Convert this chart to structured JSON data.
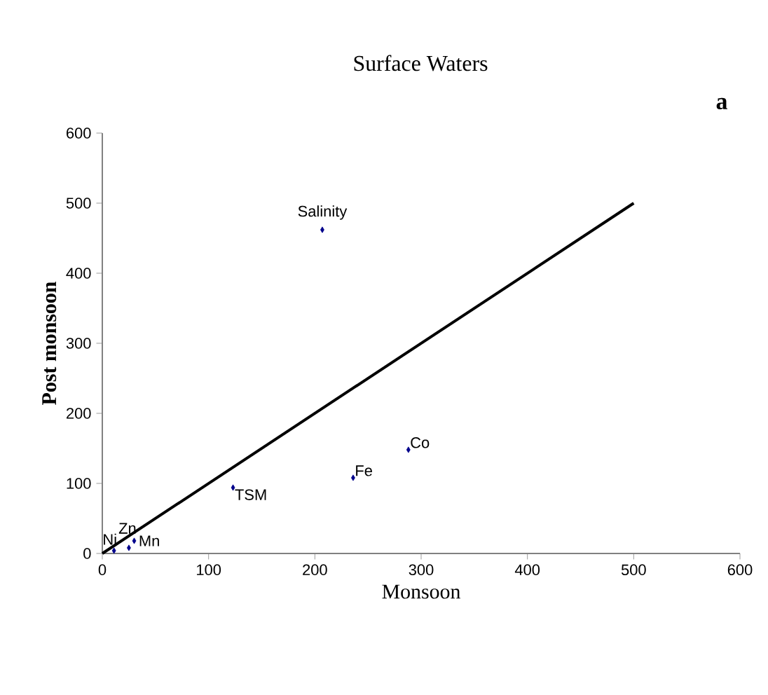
{
  "chart_data": {
    "type": "scatter",
    "title": "Surface Waters",
    "xlabel": "Monsoon",
    "ylabel": "Post monsoon",
    "xlim": [
      0,
      600
    ],
    "ylim": [
      0,
      600
    ],
    "xticks": [
      0,
      100,
      200,
      300,
      400,
      500,
      600
    ],
    "yticks": [
      0,
      100,
      200,
      300,
      400,
      500,
      600
    ],
    "grid": false,
    "marker": "diamond",
    "series": [
      {
        "color": "#00008b",
        "x": [
          11,
          25,
          30,
          123,
          207,
          236,
          288
        ],
        "values": [
          4,
          8,
          18,
          94,
          462,
          108,
          148
        ]
      },
      {
        "type": "line",
        "color": "#000000",
        "marker": "none",
        "line_style": "solid",
        "x": [
          0,
          500
        ],
        "values": [
          0,
          500
        ]
      }
    ],
    "annotations": [
      {
        "text": "Ni",
        "x": 11,
        "y": 4
      },
      {
        "text": "Zn",
        "x": 25,
        "y": 8
      },
      {
        "text": "Mn",
        "x": 30,
        "y": 18
      },
      {
        "text": "TSM",
        "x": 123,
        "y": 94
      },
      {
        "text": "Salinity",
        "x": 207,
        "y": 462
      },
      {
        "text": "Fe",
        "x": 236,
        "y": 108
      },
      {
        "text": "Co",
        "x": 288,
        "y": 148
      },
      "a"
    ]
  }
}
